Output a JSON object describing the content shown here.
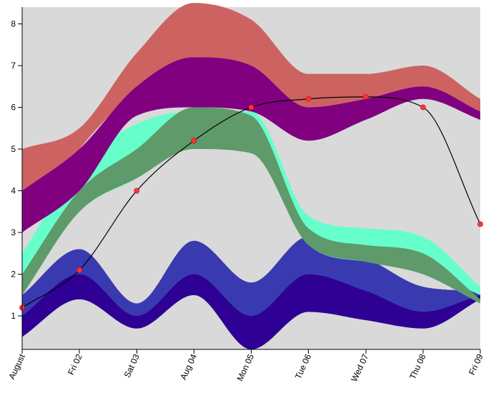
{
  "chart_data": {
    "type": "area",
    "title": "",
    "xlabel": "",
    "ylabel": "",
    "x_tick_labels": [
      "August",
      "Fri 02",
      "Sat 03",
      "Aug 04",
      "Mon 05",
      "Tue 06",
      "Wed 07",
      "Thu 08",
      "Fri 09"
    ],
    "y_tick_labels": [
      "1",
      "2",
      "3",
      "4",
      "5",
      "6",
      "7",
      "8"
    ],
    "x": [
      "2020-08-01",
      "2020-08-02",
      "2020-08-03",
      "2020-08-04",
      "2020-08-05",
      "2020-08-06",
      "2020-08-07",
      "2020-08-08",
      "2020-08-09"
    ],
    "ylim": [
      0.2,
      8.4
    ],
    "plot_background": "#d9d9d9",
    "bands": [
      {
        "color": "#2e0094",
        "lower": [
          0.5,
          1.4,
          0.7,
          1.5,
          0.2,
          1.1,
          0.9,
          0.7,
          1.4
        ],
        "upper": [
          1.5,
          2.6,
          1.3,
          2.8,
          1.8,
          2.9,
          2.4,
          1.7,
          1.6
        ]
      },
      {
        "color": "#3a3ab0",
        "lower": [
          1.0,
          2.0,
          1.0,
          2.0,
          1.0,
          2.0,
          1.6,
          1.1,
          1.5
        ],
        "upper": [
          1.5,
          2.6,
          1.3,
          2.8,
          1.8,
          2.9,
          2.4,
          1.7,
          1.6
        ]
      },
      {
        "color": "#66ffcc",
        "lower": [
          1.5,
          3.5,
          4.3,
          5.2,
          5.0,
          2.7,
          2.3,
          2.1,
          1.5
        ],
        "upper": [
          2.5,
          4.6,
          5.6,
          5.9,
          5.9,
          3.4,
          3.1,
          2.9,
          1.7
        ]
      },
      {
        "color": "#5f9a6a",
        "lower": [
          1.5,
          3.5,
          4.3,
          5.0,
          4.9,
          2.7,
          2.3,
          2.0,
          1.3
        ],
        "upper": [
          2.0,
          4.0,
          5.0,
          6.0,
          5.8,
          3.1,
          2.7,
          2.5,
          1.4
        ]
      },
      {
        "color": "#cd6361",
        "lower": [
          3.0,
          5.0,
          6.4,
          7.2,
          7.0,
          6.0,
          6.2,
          6.5,
          5.9
        ],
        "upper": [
          5.0,
          5.5,
          7.3,
          8.5,
          8.1,
          6.8,
          6.8,
          7.0,
          6.2
        ]
      },
      {
        "color": "#800080",
        "lower": [
          3.0,
          4.0,
          5.8,
          6.0,
          5.9,
          5.2,
          5.7,
          6.2,
          5.7
        ],
        "upper": [
          4.0,
          5.0,
          6.5,
          7.2,
          7.0,
          6.0,
          6.2,
          6.5,
          5.9
        ]
      }
    ],
    "series": [
      {
        "values": [
          1.2,
          2.1,
          4.0,
          5.2,
          6.0,
          6.2,
          6.25,
          6.0,
          3.2
        ],
        "line_color": "#000000",
        "marker_color": "#ff3333"
      }
    ]
  }
}
